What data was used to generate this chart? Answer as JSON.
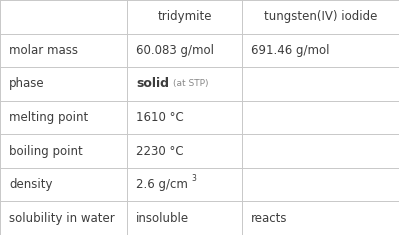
{
  "col_headers": [
    "",
    "tridymite",
    "tungsten(IV) iodide"
  ],
  "rows": [
    {
      "property": "molar mass",
      "tri": "60.083 g/mol",
      "tung": "691.46 g/mol"
    },
    {
      "property": "phase",
      "tri": "phase_special",
      "tung": ""
    },
    {
      "property": "melting point",
      "tri": "1610 °C",
      "tung": ""
    },
    {
      "property": "boiling point",
      "tri": "2230 °C",
      "tung": ""
    },
    {
      "property": "density",
      "tri": "density_special",
      "tung": ""
    },
    {
      "property": "solubility in water",
      "tri": "insoluble",
      "tung": "reacts"
    }
  ],
  "line_color": "#c8c8c8",
  "text_color": "#3d3d3d",
  "bg_color": "#ffffff",
  "fig_width": 3.99,
  "fig_height": 2.35,
  "dpi": 100
}
